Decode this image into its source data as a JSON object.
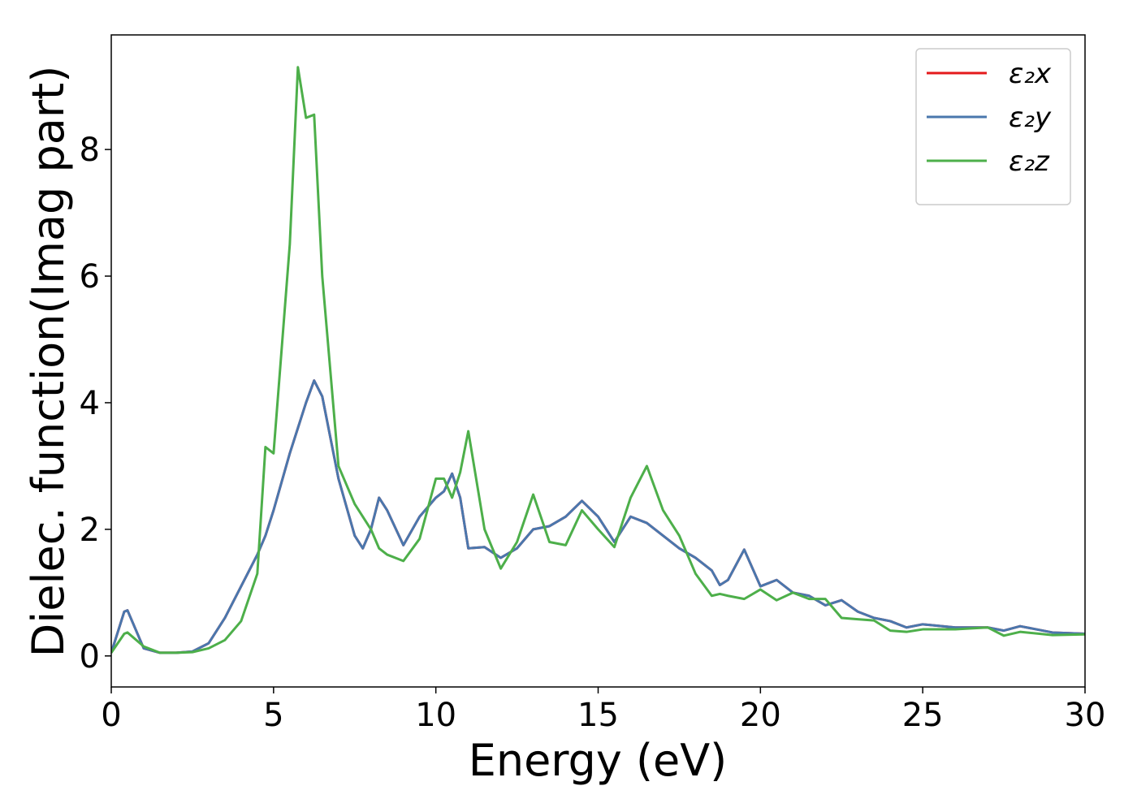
{
  "chart_data": {
    "type": "line",
    "xlabel": "Energy (eV)",
    "ylabel": "Dielec. function(Imag part)",
    "x": [
      0,
      0.4,
      0.5,
      1,
      1.5,
      2,
      2.5,
      3,
      3.5,
      4,
      4.5,
      4.75,
      5,
      5.5,
      5.75,
      6,
      6.25,
      6.5,
      7,
      7.5,
      7.75,
      8,
      8.25,
      8.5,
      9,
      9.5,
      10,
      10.25,
      10.5,
      10.75,
      11,
      11.5,
      12,
      12.5,
      13,
      13.5,
      14,
      14.5,
      15,
      15.5,
      16,
      16.5,
      17,
      17.5,
      18,
      18.5,
      18.75,
      19,
      19.5,
      20,
      20.5,
      21,
      21.5,
      22,
      22.5,
      23,
      23.5,
      24,
      24.5,
      25,
      26,
      27,
      27.5,
      28,
      29,
      30
    ],
    "series": [
      {
        "name": "ε₂x",
        "color": "#e41a1c",
        "values": [
          0.05,
          0.7,
          0.72,
          0.12,
          0.05,
          0.05,
          0.07,
          0.2,
          0.6,
          1.1,
          1.6,
          1.9,
          2.3,
          3.2,
          3.6,
          4.0,
          4.35,
          4.1,
          2.8,
          1.9,
          1.7,
          2.0,
          2.5,
          2.3,
          1.75,
          2.2,
          2.5,
          2.6,
          2.88,
          2.5,
          1.7,
          1.72,
          1.55,
          1.7,
          2.0,
          2.05,
          2.2,
          2.45,
          2.2,
          1.8,
          2.2,
          2.1,
          1.9,
          1.7,
          1.55,
          1.35,
          1.12,
          1.2,
          1.68,
          1.1,
          1.2,
          1.0,
          0.95,
          0.8,
          0.88,
          0.7,
          0.6,
          0.55,
          0.45,
          0.5,
          0.45,
          0.45,
          0.4,
          0.47,
          0.37,
          0.35
        ]
      },
      {
        "name": "ε₂y",
        "color": "#4a77ad",
        "values": [
          0.05,
          0.7,
          0.72,
          0.12,
          0.05,
          0.05,
          0.07,
          0.2,
          0.6,
          1.1,
          1.6,
          1.9,
          2.3,
          3.2,
          3.6,
          4.0,
          4.35,
          4.1,
          2.8,
          1.9,
          1.7,
          2.0,
          2.5,
          2.3,
          1.75,
          2.2,
          2.5,
          2.6,
          2.88,
          2.5,
          1.7,
          1.72,
          1.55,
          1.7,
          2.0,
          2.05,
          2.2,
          2.45,
          2.2,
          1.8,
          2.2,
          2.1,
          1.9,
          1.7,
          1.55,
          1.35,
          1.12,
          1.2,
          1.68,
          1.1,
          1.2,
          1.0,
          0.95,
          0.8,
          0.88,
          0.7,
          0.6,
          0.55,
          0.45,
          0.5,
          0.45,
          0.45,
          0.4,
          0.47,
          0.37,
          0.35
        ]
      },
      {
        "name": "ε₂z",
        "color": "#4daf4a",
        "values": [
          0.05,
          0.35,
          0.37,
          0.15,
          0.05,
          0.05,
          0.06,
          0.12,
          0.25,
          0.55,
          1.3,
          3.3,
          3.2,
          6.5,
          9.3,
          8.5,
          8.55,
          6.0,
          3.0,
          2.4,
          2.2,
          2.0,
          1.7,
          1.6,
          1.5,
          1.85,
          2.8,
          2.8,
          2.5,
          2.9,
          3.55,
          2.0,
          1.38,
          1.8,
          2.55,
          1.8,
          1.75,
          2.3,
          2.0,
          1.72,
          2.5,
          3.0,
          2.3,
          1.9,
          1.3,
          0.95,
          0.98,
          0.95,
          0.9,
          1.05,
          0.88,
          1.0,
          0.9,
          0.9,
          0.6,
          0.58,
          0.56,
          0.4,
          0.38,
          0.42,
          0.42,
          0.45,
          0.32,
          0.38,
          0.33,
          0.34
        ]
      }
    ],
    "xlim": [
      0,
      30
    ],
    "xticks": [
      0,
      5,
      10,
      15,
      20,
      25,
      30
    ],
    "ylim": [
      -0.49,
      9.81
    ],
    "yticks": [
      0,
      2,
      4,
      6,
      8
    ],
    "grid": false,
    "legend": "upper right"
  }
}
